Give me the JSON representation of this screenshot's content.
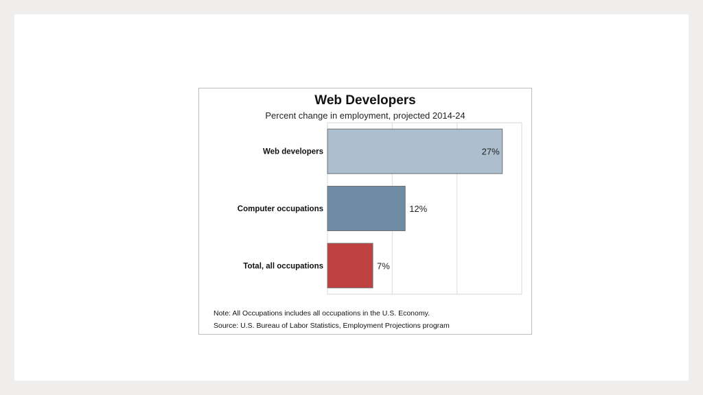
{
  "chart_data": {
    "type": "bar",
    "orientation": "horizontal",
    "title": "Web Developers",
    "subtitle": "Percent change in employment, projected 2014-24",
    "categories": [
      "Web developers",
      "Computer occupations",
      "Total, all occupations"
    ],
    "values": [
      27,
      12,
      7
    ],
    "value_labels": [
      "27%",
      "12%",
      "7%"
    ],
    "colors": [
      "#adbfcf",
      "#6e8ca6",
      "#bf4141"
    ],
    "xlim": [
      0,
      30
    ],
    "grid": true,
    "gridlines_x": [
      0,
      10,
      20,
      30
    ]
  },
  "notes": {
    "note": "Note: All Occupations includes all occupations in the U.S. Economy.",
    "source": "Source: U.S. Bureau of Labor Statistics, Employment Projections program"
  }
}
